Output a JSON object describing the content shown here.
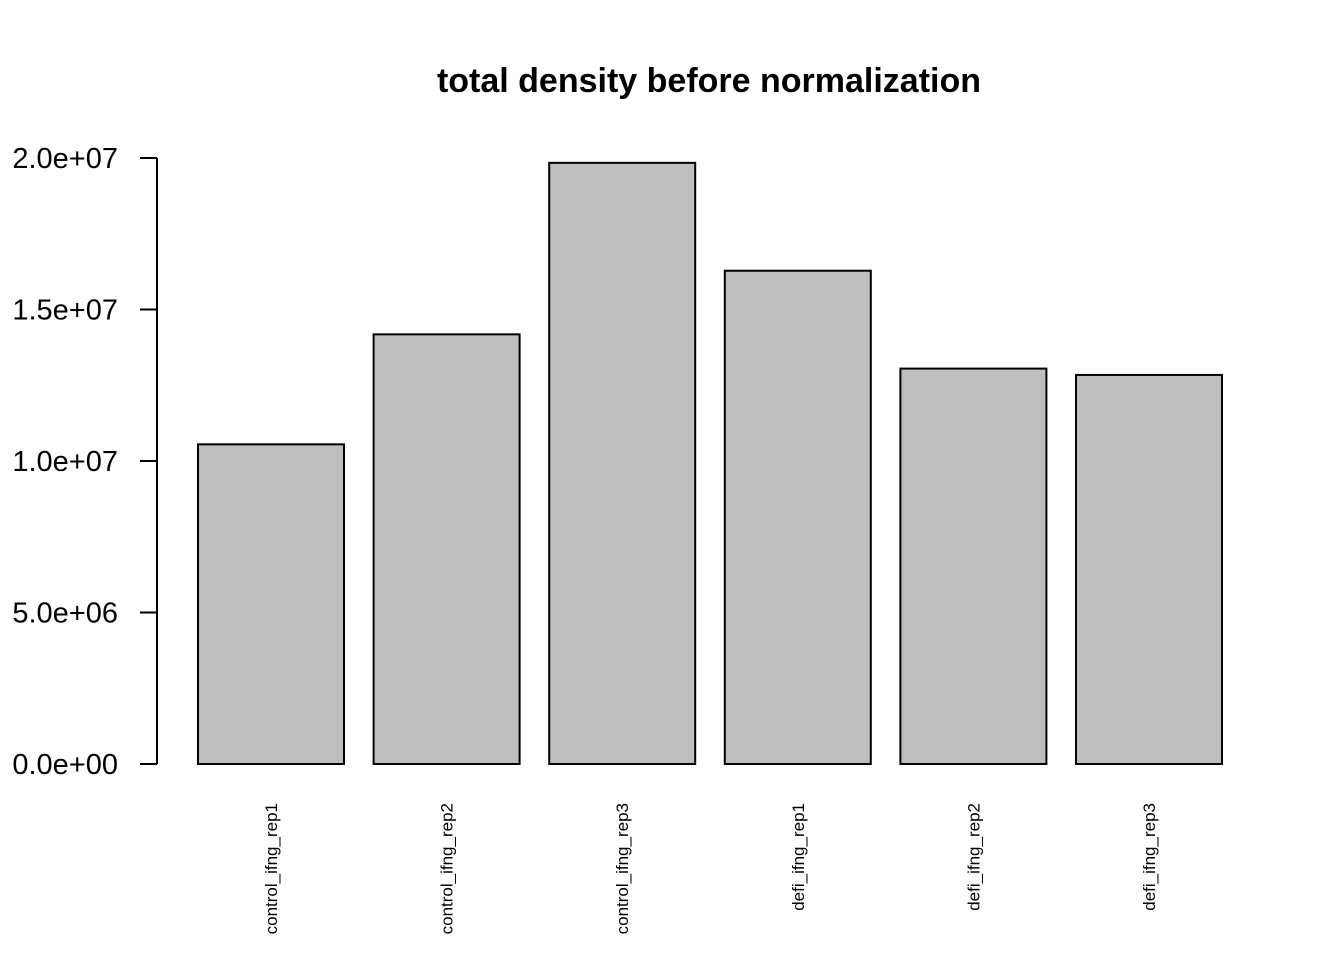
{
  "chart_data": {
    "type": "bar",
    "title": "total density before normalization",
    "xlabel": "",
    "ylabel": "",
    "categories": [
      "control_ifng_rep1",
      "control_ifng_rep2",
      "control_ifng_rep3",
      "defi_ifng_rep1",
      "defi_ifng_rep2",
      "defi_ifng_rep3"
    ],
    "values": [
      10550000,
      14180000,
      19840000,
      16280000,
      13050000,
      12840000
    ],
    "ylim": [
      0,
      20000000
    ],
    "yticks": [
      0,
      5000000,
      10000000,
      15000000,
      20000000
    ],
    "ytick_labels": [
      "0.0e+00",
      "5.0e+06",
      "1.0e+07",
      "1.5e+07",
      "2.0e+07"
    ],
    "bar_color": "#bebebe",
    "grid": false,
    "legend": false
  }
}
